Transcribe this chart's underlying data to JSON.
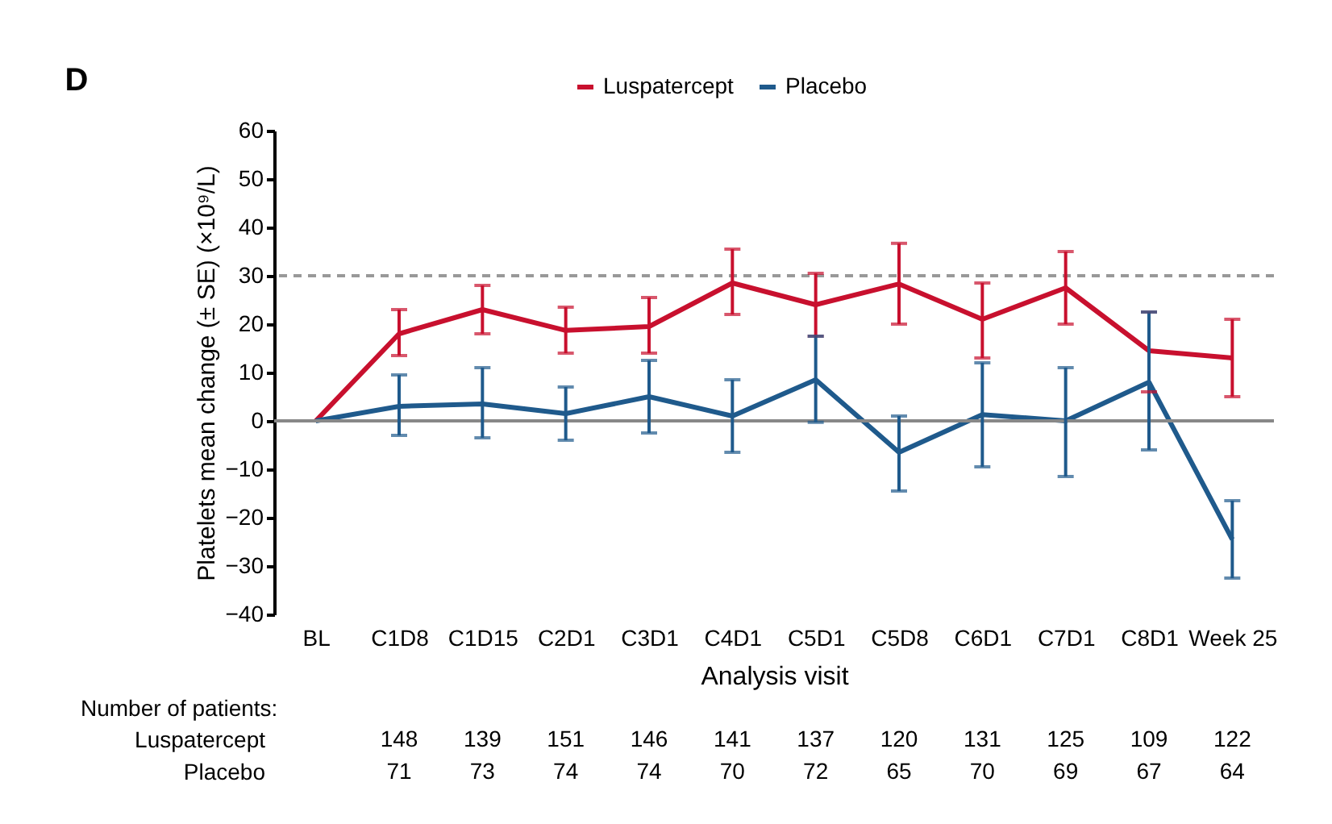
{
  "chart_data": {
    "type": "line",
    "xlabel": "Analysis visit",
    "ylabel": "Platelets mean change (± SE) (×10⁹/L)",
    "categories": [
      "BL",
      "C1D8",
      "C1D15",
      "C2D1",
      "C3D1",
      "C4D1",
      "C5D1",
      "C5D8",
      "C6D1",
      "C7D1",
      "C8D1",
      "Week 25"
    ],
    "series": [
      {
        "name": "Luspatercept",
        "color": "#c8102e",
        "values": [
          0,
          18,
          23,
          18.7,
          19.5,
          28.5,
          24,
          28.3,
          21,
          27.5,
          14.5,
          13
        ],
        "errors": [
          null,
          [
            13.5,
            23
          ],
          [
            18,
            28
          ],
          [
            14,
            23.5
          ],
          [
            14,
            25.5
          ],
          [
            22,
            35.5
          ],
          [
            17.5,
            30.5
          ],
          [
            20,
            36.7
          ],
          [
            13,
            28.5
          ],
          [
            20,
            35
          ],
          [
            6,
            22.5
          ],
          [
            5,
            21
          ]
        ]
      },
      {
        "name": "Placebo",
        "color": "#1f5a8c",
        "values": [
          0,
          3,
          3.5,
          1.5,
          5,
          1,
          8.5,
          -6.5,
          1.3,
          0,
          8,
          -24.5
        ],
        "errors": [
          null,
          [
            -3,
            9.5
          ],
          [
            -3.5,
            11
          ],
          [
            -4,
            7
          ],
          [
            -2.5,
            12.5
          ],
          [
            -6.5,
            8.5
          ],
          [
            -0.3,
            17.5
          ],
          [
            -14.5,
            1
          ],
          [
            -9.5,
            12
          ],
          [
            -11.5,
            11
          ],
          [
            -6,
            22.5
          ],
          [
            -32.5,
            -16.5
          ]
        ]
      }
    ],
    "ylim": [
      -40,
      60
    ],
    "yticks": [
      -40,
      -30,
      -20,
      -10,
      0,
      10,
      20,
      30,
      40,
      50,
      60
    ],
    "grid": false,
    "legend": "top",
    "marker": "none",
    "line_style": "solid",
    "ref_lines": [
      {
        "axis": "y",
        "value": 30,
        "color": "#999999",
        "line_style": "dashed"
      },
      {
        "axis": "y",
        "value": 0,
        "color": "#888888",
        "line_style": "solid"
      }
    ],
    "annotations": [
      "D",
      "Number of patients:",
      "Luspatercept",
      "148",
      "139",
      "151",
      "146",
      "141",
      "137",
      "120",
      "131",
      "125",
      "109",
      "122",
      "Placebo",
      "71",
      "73",
      "74",
      "74",
      "70",
      "72",
      "65",
      "70",
      "69",
      "67",
      "64"
    ]
  }
}
